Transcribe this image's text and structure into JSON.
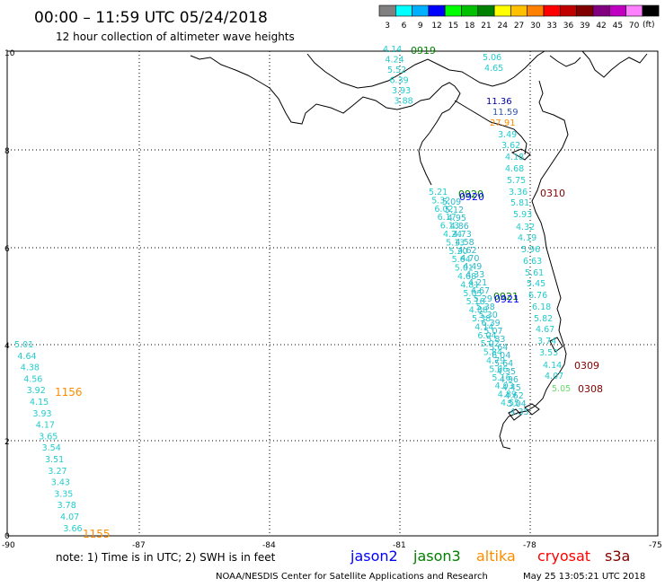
{
  "header": {
    "title": "00:00 – 11:59 UTC 05/24/2018",
    "subtitle": "12 hour collection of altimeter wave heights"
  },
  "legend": {
    "unit": "(ft)",
    "bins": [
      {
        "label": "3",
        "color": "#808080"
      },
      {
        "label": "6",
        "color": "#00ffff"
      },
      {
        "label": "9",
        "color": "#00b0ff"
      },
      {
        "label": "12",
        "color": "#0000ff"
      },
      {
        "label": "15",
        "color": "#00ff00"
      },
      {
        "label": "18",
        "color": "#00c000"
      },
      {
        "label": "21",
        "color": "#008000"
      },
      {
        "label": "24",
        "color": "#ffff00"
      },
      {
        "label": "27",
        "color": "#ffc000"
      },
      {
        "label": "30",
        "color": "#ff8000"
      },
      {
        "label": "33",
        "color": "#ff0000"
      },
      {
        "label": "36",
        "color": "#c00000"
      },
      {
        "label": "39",
        "color": "#800000"
      },
      {
        "label": "42",
        "color": "#800080"
      },
      {
        "label": "45",
        "color": "#c000c0"
      },
      {
        "label": "70",
        "color": "#ff80ff"
      },
      {
        "label": "",
        "color": "#000000"
      }
    ]
  },
  "axes": {
    "lat_labels": [
      "10",
      "8",
      "6",
      "4",
      "2",
      "0"
    ],
    "lon_labels": [
      "-90",
      "-87",
      "-84",
      "-81",
      "-78",
      "-75"
    ]
  },
  "tracks": {
    "jason3_north": {
      "time": "0919",
      "color": "#008000",
      "values": [
        "4.14",
        "4.24",
        "5.52",
        "6.39",
        "3.93",
        "3.88"
      ]
    },
    "panama_bay": {
      "values": [
        "5.06",
        "4.65"
      ]
    },
    "jason2_gulf": {
      "time_values": [
        "11.36",
        "11.59"
      ],
      "color": "#0000a0"
    },
    "altika_gulf": {
      "value": "27.91",
      "color": "#ff8c00"
    },
    "east_track": {
      "values": [
        "3.49",
        "3.62",
        "4.18",
        "4.68",
        "5.75",
        "3.36",
        "5.81",
        "5.93",
        "4.32",
        "4.19",
        "5.96",
        "6.63",
        "5.61",
        "5.45",
        "6.76",
        "6.18",
        "5.82",
        "4.67",
        "3.74",
        "3.53",
        "4.14",
        "4.07",
        "5.05"
      ]
    },
    "cryosat_times": [
      {
        "time": "0310",
        "color": "#800000"
      },
      {
        "time": "0309",
        "color": "#800000"
      },
      {
        "time": "0308",
        "color": "#800000"
      }
    ],
    "diag_a": {
      "values": [
        "5.21",
        "5.32",
        "6.02",
        "6.17",
        "6.13",
        "4.24",
        "5.13",
        "5.20",
        "5.64",
        "5.01",
        "4.68",
        "4.81",
        "5.05",
        "5.18",
        "4.88",
        "5.38",
        "4.14",
        "6.04",
        "5.02",
        "5.84",
        "4.79",
        "5.06",
        "5.16",
        "4.03",
        "4.89",
        "4.55"
      ]
    },
    "diag_b": {
      "values": [
        "5.09",
        "5.12",
        "4.95",
        "4.86",
        "4.73",
        "4.58",
        "4.62",
        "4.70",
        "4.49",
        "4.33",
        "4.21",
        "4.67",
        "5.29",
        "5.38",
        "5.30",
        "6.39",
        "5.07",
        "5.83",
        "5.64",
        "6.04",
        "5.64",
        "4.35",
        "4.96",
        "4.45",
        "4.62",
        "5.04",
        "4.35"
      ]
    },
    "pair_0920": {
      "j2": "0920",
      "j3": "0920"
    },
    "pair_0921": {
      "j2": "0921",
      "j3": "0921"
    },
    "saral_west": {
      "time_upper": "1156",
      "time_lower": "1155",
      "color": "#ff8c00",
      "values": [
        "5.01",
        "4.64",
        "4.38",
        "4.56",
        "3.92",
        "4.15",
        "3.93",
        "4.17",
        "3.65",
        "3.54",
        "3.51",
        "3.27",
        "3.43",
        "3.35",
        "3.78",
        "4.07",
        "3.66"
      ]
    }
  },
  "footer": {
    "note": "note: 1) Time is in UTC; 2) SWH is in feet",
    "missions": [
      {
        "name": "jason2",
        "color": "#0000ff"
      },
      {
        "name": "jason3",
        "color": "#008000"
      },
      {
        "name": "altika",
        "color": "#ff8c00"
      },
      {
        "name": "cryosat",
        "color": "#ff0000"
      },
      {
        "name": "s3a",
        "color": "#800000"
      }
    ],
    "credit": "NOAA/NESDIS Center for Satellite Applications and Research",
    "timestamp": "May 25 13:05:21 UTC 2018"
  }
}
